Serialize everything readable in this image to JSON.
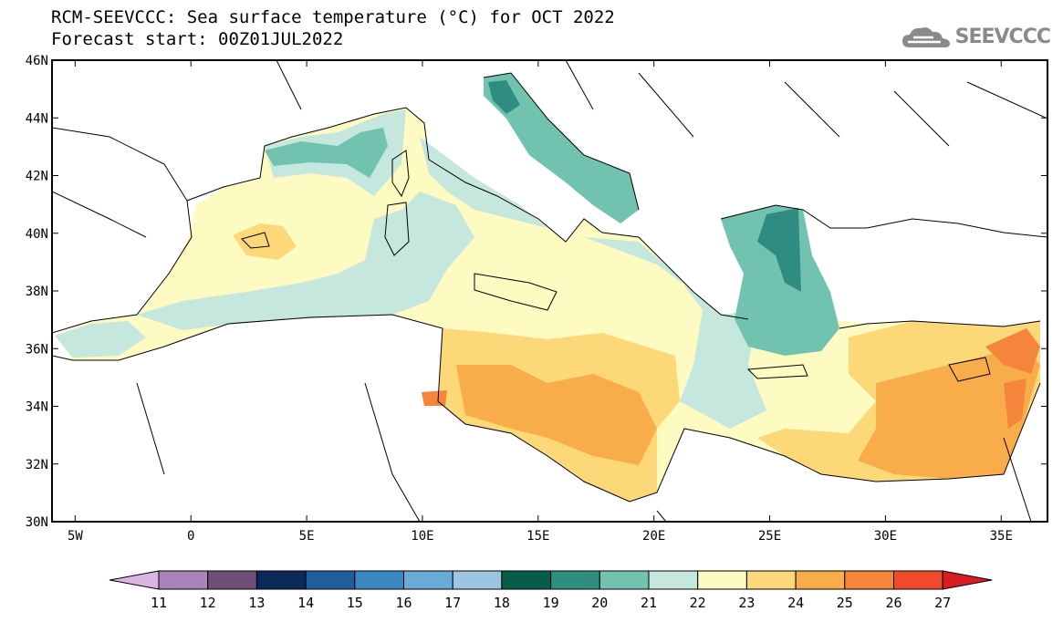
{
  "title_line1": "RCM-SEEVCCC: Sea surface temperature (°C) for OCT 2022",
  "title_line2": "Forecast start: 00Z01JUL2022",
  "logo_text": "SEEVCCC",
  "map": {
    "lon_range": [
      -6,
      37
    ],
    "lat_range": [
      30,
      46
    ],
    "x_ticks": [
      "5W",
      "0",
      "5E",
      "10E",
      "15E",
      "20E",
      "25E",
      "30E",
      "35E"
    ],
    "y_ticks": [
      "46N",
      "44N",
      "42N",
      "40N",
      "38N",
      "36N",
      "34N",
      "32N",
      "30N"
    ]
  },
  "colorbar": {
    "labels": [
      "11",
      "12",
      "13",
      "14",
      "15",
      "16",
      "17",
      "18",
      "19",
      "20",
      "21",
      "22",
      "23",
      "24",
      "25",
      "26",
      "27"
    ],
    "colors": [
      "#d9b5e0",
      "#a983bb",
      "#6b4f77",
      "#0b2a5a",
      "#1f5e9c",
      "#3b87c2",
      "#6aaad6",
      "#9cc5e2",
      "#065e4a",
      "#2f8c80",
      "#72c2b0",
      "#c6e7de",
      "#fdfac2",
      "#fcd878",
      "#f8ad4a",
      "#f5853a",
      "#ef4a2c",
      "#d91d23"
    ]
  }
}
